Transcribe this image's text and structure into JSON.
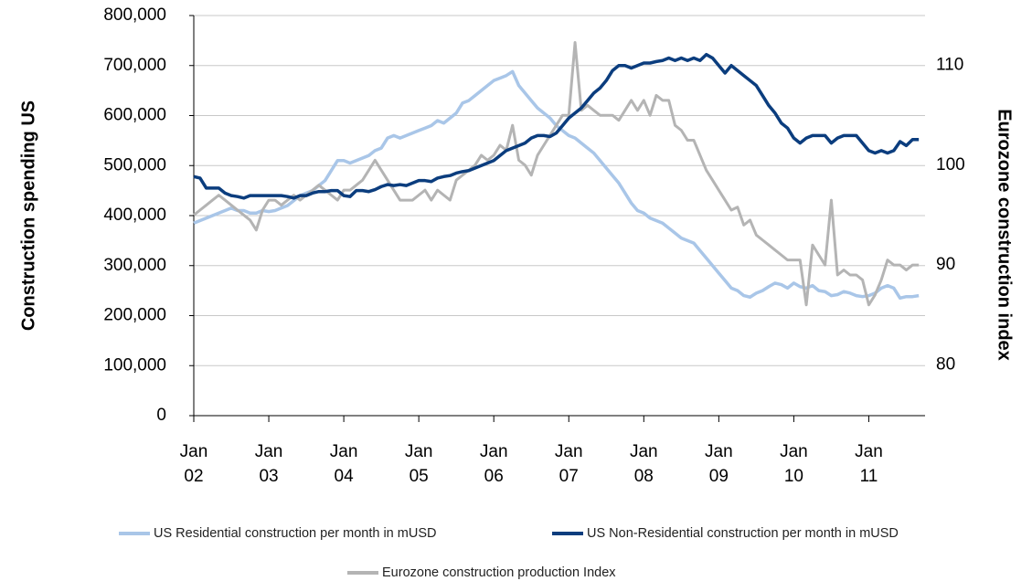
{
  "chart_data": {
    "type": "line",
    "categories": [
      "Jan 02",
      null,
      null,
      null,
      null,
      null,
      null,
      null,
      null,
      null,
      null,
      null,
      "Jan 03",
      null,
      null,
      null,
      null,
      null,
      null,
      null,
      null,
      null,
      null,
      null,
      "Jan 04",
      null,
      null,
      null,
      null,
      null,
      null,
      null,
      null,
      null,
      null,
      null,
      "Jan 05",
      null,
      null,
      null,
      null,
      null,
      null,
      null,
      null,
      null,
      null,
      null,
      "Jan 06",
      null,
      null,
      null,
      null,
      null,
      null,
      null,
      null,
      null,
      null,
      null,
      "Jan 07",
      null,
      null,
      null,
      null,
      null,
      null,
      null,
      null,
      null,
      null,
      null,
      "Jan 08",
      null,
      null,
      null,
      null,
      null,
      null,
      null,
      null,
      null,
      null,
      null,
      "Jan 09",
      null,
      null,
      null,
      null,
      null,
      null,
      null,
      null,
      null,
      null,
      null,
      "Jan 10",
      null,
      null,
      null,
      null,
      null,
      null,
      null,
      null,
      null,
      null,
      null,
      "Jan 11",
      null,
      null,
      null,
      null,
      null,
      null,
      null,
      null
    ],
    "ylabel": "Construction spending US",
    "y2label": "Eurozone construction index",
    "ylim": [
      0,
      800000
    ],
    "yticks": [
      0,
      {
        "value": 100000,
        "label": "100,000"
      },
      {
        "value": 200000,
        "label": "200,000"
      },
      {
        "value": 300000,
        "label": "300,000"
      },
      {
        "value": 400000,
        "label": "400,000"
      },
      {
        "value": 500000,
        "label": "500,000"
      },
      {
        "value": 600000,
        "label": "600,000"
      },
      {
        "value": 700000,
        "label": "700,000"
      },
      {
        "value": 800000,
        "label": "800,000"
      }
    ],
    "y2lim": [
      74.9,
      115.0
    ],
    "y2ticks": [
      80,
      90,
      100,
      110
    ],
    "grid": true,
    "legend": "bottom",
    "series": [
      {
        "name": "US Residential construction per month in mUSD",
        "color": "#a9c6e8",
        "values": [
          385000,
          390000,
          395000,
          400000,
          405000,
          410000,
          415000,
          410000,
          410000,
          405000,
          405000,
          410000,
          408000,
          410000,
          415000,
          420000,
          430000,
          440000,
          445000,
          450000,
          460000,
          470000,
          490000,
          510000,
          510000,
          505000,
          510000,
          515000,
          520000,
          530000,
          535000,
          555000,
          560000,
          555000,
          560000,
          565000,
          570000,
          575000,
          580000,
          590000,
          585000,
          595000,
          605000,
          625000,
          630000,
          640000,
          650000,
          660000,
          670000,
          675000,
          680000,
          688000,
          660000,
          645000,
          630000,
          615000,
          605000,
          595000,
          580000,
          570000,
          560000,
          555000,
          545000,
          535000,
          525000,
          510000,
          495000,
          480000,
          465000,
          445000,
          425000,
          410000,
          405000,
          395000,
          390000,
          385000,
          375000,
          365000,
          355000,
          350000,
          345000,
          330000,
          315000,
          300000,
          285000,
          270000,
          255000,
          250000,
          240000,
          237000,
          245000,
          250000,
          258000,
          265000,
          262000,
          255000,
          265000,
          258000,
          255000,
          260000,
          250000,
          248000,
          240000,
          242000,
          248000,
          245000,
          240000,
          238000,
          240000,
          245000,
          255000,
          260000,
          255000,
          235000,
          238000,
          238000,
          240000
        ]
      },
      {
        "name": "US Non-Residential construction per month in mUSD",
        "color": "#0b3d7e",
        "values": [
          478000,
          475000,
          455000,
          455000,
          455000,
          445000,
          440000,
          438000,
          435000,
          440000,
          440000,
          440000,
          440000,
          440000,
          440000,
          438000,
          435000,
          440000,
          440000,
          445000,
          448000,
          448000,
          450000,
          450000,
          440000,
          438000,
          450000,
          450000,
          448000,
          452000,
          458000,
          462000,
          460000,
          462000,
          460000,
          465000,
          470000,
          470000,
          468000,
          475000,
          478000,
          480000,
          485000,
          488000,
          490000,
          495000,
          500000,
          505000,
          510000,
          520000,
          530000,
          535000,
          540000,
          545000,
          555000,
          560000,
          560000,
          558000,
          565000,
          580000,
          595000,
          605000,
          615000,
          630000,
          645000,
          655000,
          670000,
          690000,
          700000,
          700000,
          695000,
          700000,
          705000,
          705000,
          708000,
          710000,
          715000,
          710000,
          715000,
          710000,
          715000,
          710000,
          722000,
          715000,
          700000,
          685000,
          700000,
          690000,
          680000,
          670000,
          660000,
          640000,
          620000,
          605000,
          585000,
          575000,
          555000,
          545000,
          555000,
          560000,
          560000,
          560000,
          545000,
          555000,
          560000,
          560000,
          560000,
          545000,
          530000,
          525000,
          530000,
          525000,
          530000,
          548000,
          540000,
          552000,
          552000
        ]
      },
      {
        "name": "Eurozone construction production Index",
        "color": "#b4b4b4",
        "axis": "y2",
        "values": [
          95,
          95.5,
          96,
          96.5,
          97,
          96.5,
          96,
          95.5,
          95,
          94.5,
          93.5,
          95.5,
          96.5,
          96.5,
          96,
          96.5,
          97,
          96.5,
          97,
          97.5,
          98,
          97.5,
          97,
          96.5,
          97.5,
          97.5,
          98,
          98.5,
          99.5,
          100.5,
          99.5,
          98.5,
          97.5,
          96.5,
          96.5,
          96.5,
          97,
          97.5,
          96.5,
          97.5,
          97,
          96.5,
          98.5,
          99,
          99.5,
          100,
          101,
          100.5,
          101,
          102,
          101.5,
          104,
          100.5,
          100,
          99,
          101,
          102,
          103,
          104,
          105,
          105,
          112.3,
          105.5,
          106,
          105.5,
          105,
          105,
          105,
          104.5,
          105.5,
          106.5,
          105.5,
          106.5,
          105,
          107,
          106.5,
          106.5,
          104,
          103.5,
          102.5,
          102.5,
          101,
          99.5,
          98.5,
          97.5,
          96.5,
          95.5,
          95.8,
          94,
          94.5,
          93,
          92.5,
          92,
          91.5,
          91,
          90.5,
          90.5,
          90.5,
          86,
          92,
          91,
          90,
          96.5,
          89,
          89.5,
          89,
          89,
          88.5,
          86,
          87,
          88.5,
          90.5,
          90,
          90,
          89.5,
          90,
          90
        ]
      }
    ]
  }
}
